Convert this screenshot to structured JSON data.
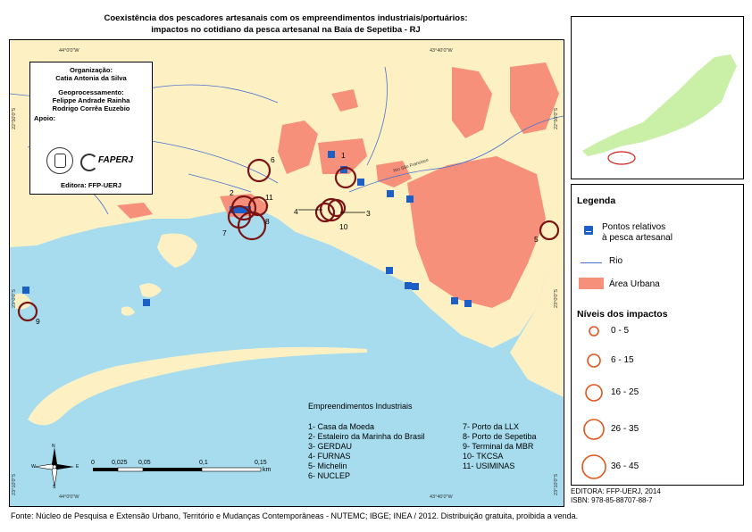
{
  "title": {
    "line1": "Coexistência dos pescadores artesanais com os empreendimentos industriais/portuários:",
    "line2": "impactos no cotidiano da pesca artesanal na Baía de Sepetiba - RJ"
  },
  "credits": {
    "org_label": "Organização:",
    "org_name": "Catia Antonia da Silva",
    "geo_label": "Geoprocessamento:",
    "geo_name1": "Felippe Andrade Rainha",
    "geo_name2": "Rodrigo Corrêa Euzebio",
    "support_label": "Apoio:",
    "faperj": "FAPERJ",
    "editor": "Editora: FFP-UERJ"
  },
  "coords": {
    "top_left": "44°0'0\"W",
    "top_right": "43°40'0\"W",
    "bottom_left": "44°0'0\"W",
    "bottom_right": "43°40'0\"W",
    "left_top": "22°50'0\"S",
    "left_bottom": "23°0'0\"S",
    "left_bottom2": "23°10'0\"S",
    "right_top": "22°50'0\"S",
    "right_mid": "23°0'0\"S",
    "right_bottom": "23°10'0\"S"
  },
  "river_label": "Rio São Francisco",
  "site_numbers": [
    "1",
    "2",
    "3",
    "4",
    "5",
    "6",
    "7",
    "8",
    "9",
    "10",
    "11"
  ],
  "legend": {
    "title": "Legenda",
    "points_label_1": "Pontos relativos",
    "points_label_2": "à pesca artesanal",
    "river": "Rio",
    "urban": "Área Urbana",
    "impacts_title": "Níveis dos impactos",
    "levels": [
      "0 - 5",
      "6 - 15",
      "16 - 25",
      "26 - 35",
      "36 - 45"
    ]
  },
  "enterprises": {
    "title": "Empreendimentos Industriais",
    "left": [
      "1- Casa da Moeda",
      "2- Estaleiro da Marinha do Brasil",
      "3- GERDAU",
      "4- FURNAS",
      "5- Michelin",
      "6- NUCLEP"
    ],
    "right": [
      "7- Porto da LLX",
      "8- Porto de Sepetiba",
      "9- Terminal da MBR",
      "10- TKCSA",
      "11- USIMINAS"
    ]
  },
  "scale": {
    "ticks": [
      "0",
      "0,025",
      "0,05",
      "0,1",
      "0,15"
    ],
    "unit": "km"
  },
  "compass": {
    "n": "N",
    "s": "S",
    "e": "E",
    "w": "W"
  },
  "edit_info": {
    "line1": "EDITORA: FFP-UERJ, 2014",
    "line2": "ISBN: 978-85-88707-88-7"
  },
  "footer": "Fonte: Núcleo de Pesquisa e Extensão Urbano, Território e Mudanças Contemporâneas - NUTEMC; IBGE; INEA / 2012. Distribuição gratuita, proibida a venda.",
  "colors": {
    "water": "#a6dcee",
    "land": "#fdf1c4",
    "urban": "#f7907a",
    "river": "#4a6fd0",
    "circle": "#7a1414",
    "legend_circle": "#e0561c",
    "point": "#1b5fc7",
    "inset_state": "#c9f0a6"
  }
}
